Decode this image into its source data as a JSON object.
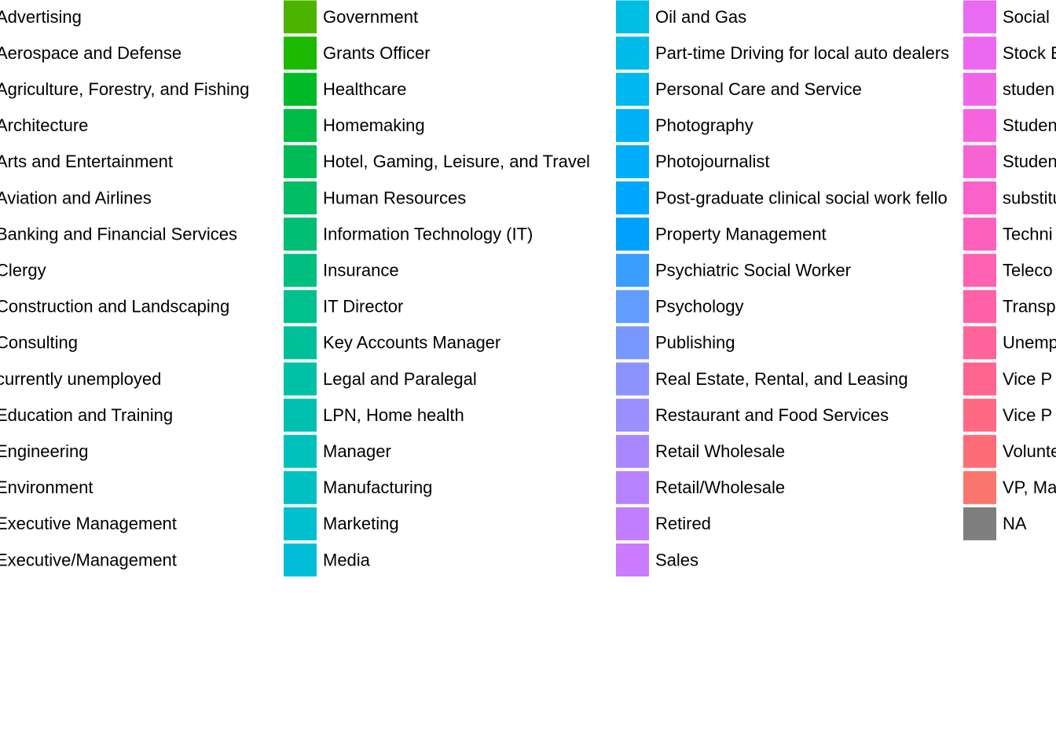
{
  "legend": {
    "columns": [
      {
        "items": [
          {
            "label": "Advertising"
          },
          {
            "label": "Aerospace and Defense"
          },
          {
            "label": "Agriculture, Forestry, and Fishing"
          },
          {
            "label": "Architecture"
          },
          {
            "label": "Arts and Entertainment"
          },
          {
            "label": "Aviation and Airlines"
          },
          {
            "label": "Banking and Financial Services"
          },
          {
            "label": "Clergy"
          },
          {
            "label": "Construction and Landscaping"
          },
          {
            "label": "Consulting"
          },
          {
            "label": "currently unemployed"
          },
          {
            "label": "Education and Training"
          },
          {
            "label": "Engineering"
          },
          {
            "label": "Environment"
          },
          {
            "label": "Executive Management"
          },
          {
            "label": "Executive/Management"
          }
        ]
      },
      {
        "items": [
          {
            "label": "Government",
            "color": "#4CB400"
          },
          {
            "label": "Grants Officer",
            "color": "#1DB800"
          },
          {
            "label": "Healthcare",
            "color": "#00BA28"
          },
          {
            "label": "Homemaking",
            "color": "#00BB45"
          },
          {
            "label": "Hotel, Gaming, Leisure, and Travel",
            "color": "#00BC56"
          },
          {
            "label": "Human Resources",
            "color": "#00BD66"
          },
          {
            "label": "Information Technology (IT)",
            "color": "#00BE73"
          },
          {
            "label": "Insurance",
            "color": "#00BF80"
          },
          {
            "label": "IT Director",
            "color": "#00C08D"
          },
          {
            "label": "Key Accounts Manager",
            "color": "#00C099"
          },
          {
            "label": "Legal and Paralegal",
            "color": "#00C0A5"
          },
          {
            "label": "LPN, Home health",
            "color": "#00C1AF"
          },
          {
            "label": "Manager",
            "color": "#00C1BA"
          },
          {
            "label": "Manufacturing",
            "color": "#00C0C4"
          },
          {
            "label": "Marketing",
            "color": "#00BFCE"
          },
          {
            "label": "Media",
            "color": "#00BED8"
          }
        ]
      },
      {
        "items": [
          {
            "label": "Oil and Gas",
            "color": "#00BDE2"
          },
          {
            "label": "Part-time Driving for local auto dealers",
            "color": "#00BAE9"
          },
          {
            "label": "Personal Care and Service",
            "color": "#00B7EF"
          },
          {
            "label": "Photography",
            "color": "#00B2F5"
          },
          {
            "label": "Photojournalist",
            "color": "#00ADFA"
          },
          {
            "label": "Post-graduate clinical social work fello",
            "color": "#00A7FF"
          },
          {
            "label": "Property Management",
            "color": "#00A0FF"
          },
          {
            "label": "Psychiatric Social Worker",
            "color": "#3A9EFF"
          },
          {
            "label": "Psychology",
            "color": "#619CFF"
          },
          {
            "label": "Publishing",
            "color": "#7897FF"
          },
          {
            "label": "Real Estate, Rental, and Leasing",
            "color": "#8B93FF"
          },
          {
            "label": "Restaurant and Food Services",
            "color": "#9B8EFF"
          },
          {
            "label": "Retail Wholesale",
            "color": "#A988FF"
          },
          {
            "label": "Retail/Wholesale",
            "color": "#B583FF"
          },
          {
            "label": "Retired",
            "color": "#C17EFF"
          },
          {
            "label": "Sales",
            "color": "#CB7BFF"
          }
        ]
      },
      {
        "items": [
          {
            "label": "Social",
            "color": "#E76BF3"
          },
          {
            "label": "Stock E",
            "color": "#EC69EF"
          },
          {
            "label": "studen",
            "color": "#F166E6"
          },
          {
            "label": "Studen",
            "color": "#F564DD"
          },
          {
            "label": "Studen",
            "color": "#F863D3"
          },
          {
            "label": "substitu",
            "color": "#FB61C9"
          },
          {
            "label": "Techni",
            "color": "#FD61BE"
          },
          {
            "label": "Teleco",
            "color": "#FF61B3"
          },
          {
            "label": "Transp",
            "color": "#FF62A7"
          },
          {
            "label": "Unemp",
            "color": "#FF649B"
          },
          {
            "label": "Vice P",
            "color": "#FF668F"
          },
          {
            "label": "Vice P",
            "color": "#FF6983"
          },
          {
            "label": "Volunte",
            "color": "#FD6D77"
          },
          {
            "label": "VP, Ma",
            "color": "#F8766D"
          },
          {
            "label": "NA",
            "color": "#7F7F7F"
          }
        ]
      }
    ]
  }
}
